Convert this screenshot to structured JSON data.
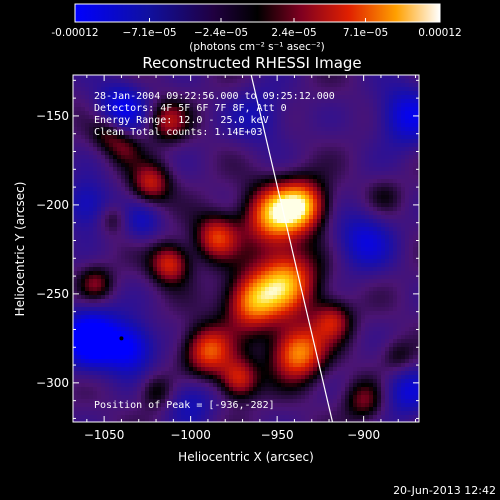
{
  "chart_data": {
    "type": "heatmap",
    "title": "Reconstructed RHESSI Image",
    "xlabel": "Heliocentric X (arcsec)",
    "ylabel": "Heliocentric Y (arcsec)",
    "xlim": [
      -1068,
      -868
    ],
    "ylim": [
      -322,
      -127
    ],
    "x_ticks": [
      -1050,
      -1000,
      -950,
      -900
    ],
    "y_ticks": [
      -150,
      -200,
      -250,
      -300
    ],
    "colorbar": {
      "min": -0.00012,
      "max": 0.00012,
      "tick_values": [
        -0.00012,
        -7.1e-05,
        -2.4e-05,
        2.4e-05,
        7.1e-05,
        0.00012
      ],
      "tick_labels": [
        "-0.00012",
        "−7.1e−05",
        "−2.4e−05",
        "2.4e−05",
        "7.1e−05",
        "0.00012"
      ],
      "unit_label": "(photons cm⁻² s⁻¹ asec⁻²)"
    },
    "annotations": [
      "28-Jan-2004 09:22:56.000 to 09:25:12.000",
      "Detectors: 4F 5F 6F 7F 8F, Att 0",
      "Energy Range: 12.0 - 25.0 keV",
      "Clean    Total counts: 1.14E+03"
    ],
    "peak_label": "Position of Peak = [-936,-282]",
    "peak_position": [
      -936,
      -282
    ],
    "limb_line": [
      [
        -965,
        -127
      ],
      [
        -918,
        -322
      ]
    ],
    "sources": [
      {
        "x": -952,
        "y": -206,
        "amp": 1.0,
        "w": 12
      },
      {
        "x": -935,
        "y": -200,
        "amp": 0.95,
        "w": 10
      },
      {
        "x": -945,
        "y": -243,
        "amp": 1.0,
        "w": 13
      },
      {
        "x": -965,
        "y": -255,
        "amp": 0.9,
        "w": 11
      },
      {
        "x": -985,
        "y": -218,
        "amp": 0.75,
        "w": 9
      },
      {
        "x": -1012,
        "y": -233,
        "amp": 0.75,
        "w": 8
      },
      {
        "x": -990,
        "y": -282,
        "amp": 0.85,
        "w": 10
      },
      {
        "x": -972,
        "y": -298,
        "amp": 0.75,
        "w": 8
      },
      {
        "x": -938,
        "y": -283,
        "amp": 1.0,
        "w": 11
      },
      {
        "x": -918,
        "y": -265,
        "amp": 0.6,
        "w": 8
      },
      {
        "x": -1023,
        "y": -188,
        "amp": 0.65,
        "w": 8
      },
      {
        "x": -1013,
        "y": -153,
        "amp": 0.55,
        "w": 8
      },
      {
        "x": -1038,
        "y": -168,
        "amp": 0.35,
        "w": 7
      },
      {
        "x": -1048,
        "y": -160,
        "amp": 0.4,
        "w": 7
      },
      {
        "x": -1055,
        "y": -244,
        "amp": 0.45,
        "w": 7
      },
      {
        "x": -1045,
        "y": -208,
        "amp": 0.3,
        "w": 6
      },
      {
        "x": -1020,
        "y": -305,
        "amp": 0.35,
        "w": 7
      },
      {
        "x": -900,
        "y": -310,
        "amp": 0.45,
        "w": 8
      },
      {
        "x": -880,
        "y": -285,
        "amp": 0.3,
        "w": 7
      },
      {
        "x": -888,
        "y": -195,
        "amp": 0.2,
        "w": 7
      },
      {
        "x": -1058,
        "y": -275,
        "amp": -0.9,
        "w": 12
      },
      {
        "x": -1035,
        "y": -280,
        "amp": -0.7,
        "w": 10
      },
      {
        "x": -1040,
        "y": -145,
        "amp": -0.6,
        "w": 10
      },
      {
        "x": -875,
        "y": -150,
        "amp": -0.6,
        "w": 12
      },
      {
        "x": -900,
        "y": -220,
        "amp": -0.5,
        "w": 12
      },
      {
        "x": -875,
        "y": -305,
        "amp": -0.5,
        "w": 10
      },
      {
        "x": -1000,
        "y": -310,
        "amp": -0.4,
        "w": 10
      },
      {
        "x": -1060,
        "y": -200,
        "amp": -0.5,
        "w": 10
      },
      {
        "x": -960,
        "y": -150,
        "amp": -0.35,
        "w": 12
      },
      {
        "x": -1028,
        "y": -210,
        "amp": -0.35,
        "w": 8
      }
    ]
  },
  "footer": {
    "timestamp": "20-Jun-2013 12:42"
  }
}
